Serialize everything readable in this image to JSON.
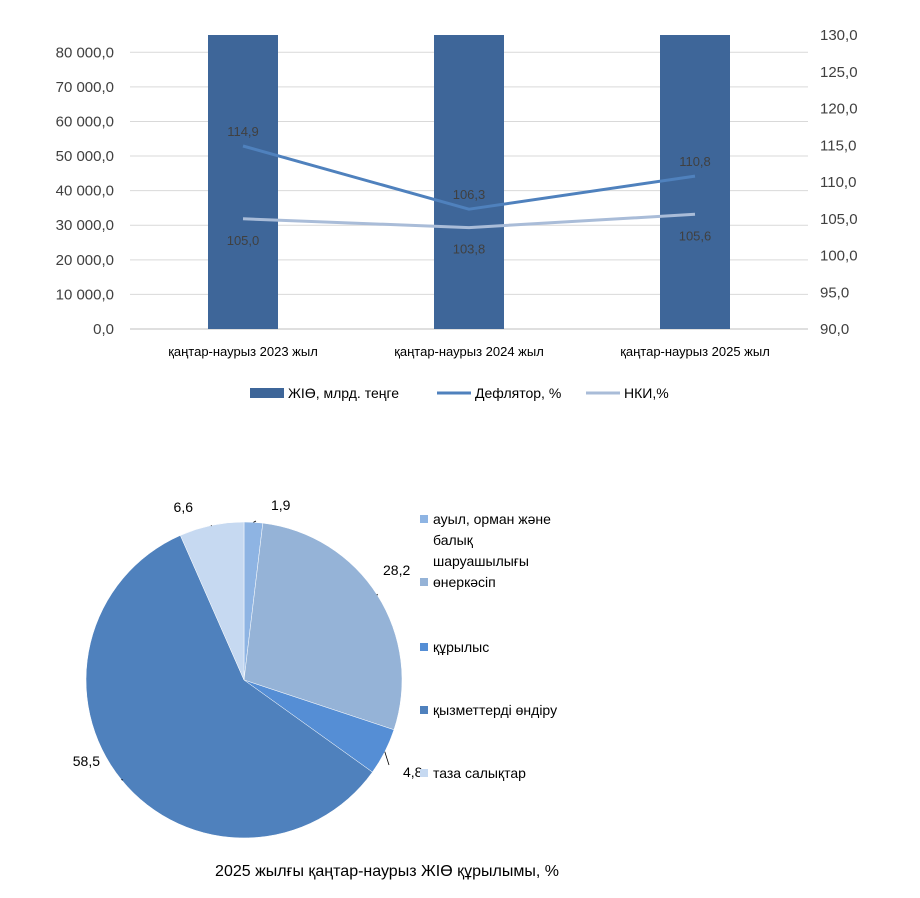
{
  "chart_data": [
    {
      "type": "bar",
      "title": "",
      "categories": [
        "қаңтар-наурыз 2023 жыл",
        "қаңтар-наурыз   2024 жыл",
        "қаңтар-наурыз  2025 жыл"
      ],
      "series": [
        {
          "name": "ЖІӨ, млрд. теңге",
          "kind": "bar",
          "axis": "left",
          "color": "#3e6699",
          "values": [
            85000,
            85000,
            85000
          ]
        },
        {
          "name": "Дефлятор, %",
          "kind": "line",
          "axis": "right",
          "color": "#4f81bd",
          "values": [
            114.9,
            106.3,
            110.8
          ],
          "labels": [
            "114,9",
            "106,3",
            "110,8"
          ]
        },
        {
          "name": "НКИ,%",
          "kind": "line",
          "axis": "right",
          "color": "#a9bcd8",
          "values": [
            105.0,
            103.8,
            105.6
          ],
          "labels": [
            "105,0",
            "103,8",
            "105,6"
          ]
        }
      ],
      "left_axis": {
        "ylim": [
          0,
          85000
        ],
        "ticks": [
          "0,0",
          "10 000,0",
          "20 000,0",
          "30 000,0",
          "40 000,0",
          "50 000,0",
          "60 000,0",
          "70 000,0",
          "80 000,0"
        ]
      },
      "right_axis": {
        "ylim": [
          90,
          130
        ],
        "ticks": [
          "90,0",
          "95,0",
          "100,0",
          "105,0",
          "110,0",
          "115,0",
          "120,0",
          "125,0",
          "130,0"
        ]
      },
      "grid": true,
      "legend_position": "bottom"
    },
    {
      "type": "pie",
      "title": "2025 жылғы қаңтар-наурыз ЖІӨ құрылымы, %",
      "slices": [
        {
          "name": "ауыл, орман және балық шаруашылығы",
          "value": 1.9,
          "label": "1,9",
          "color": "#8eb4e3"
        },
        {
          "name": "өнеркәсіп",
          "value": 28.2,
          "label": "28,2",
          "color": "#95b3d7"
        },
        {
          "name": "құрылыс",
          "value": 4.8,
          "label": "4,8",
          "color": "#558ed5"
        },
        {
          "name": "қызметтерді  өндіру",
          "value": 58.5,
          "label": "58,5",
          "color": "#4f81bd"
        },
        {
          "name": "таза салықтар",
          "value": 6.6,
          "label": "6,6",
          "color": "#c6d9f1"
        }
      ],
      "legend_lines": [
        [
          "ауыл, орман және",
          "балық",
          "шаруашылығы"
        ],
        [
          "өнеркәсіп"
        ],
        [
          "құрылыс"
        ],
        [
          "қызметтерді  өндіру"
        ],
        [
          "таза салықтар"
        ]
      ],
      "legend_position": "right"
    }
  ]
}
